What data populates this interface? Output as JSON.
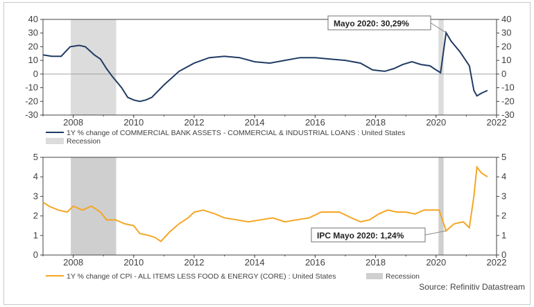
{
  "source": "Source: Refinitiv Datastream",
  "colors": {
    "bank": "#1f3b63",
    "cpi": "#f5a623",
    "recession_top": "#dcdcdc",
    "recession_bottom": "#cfcfcf",
    "zero_line": "#a0a0a0"
  },
  "chart_data": [
    {
      "type": "line",
      "title": "",
      "xlabel": "",
      "ylabel": "",
      "xlim": [
        2007.0,
        2022.0
      ],
      "ylim": [
        -30,
        40
      ],
      "x_ticks": [
        "2008",
        "2010",
        "2012",
        "2014",
        "2016",
        "2018",
        "2020",
        "2022"
      ],
      "y_ticks": [
        "40",
        "30",
        "20",
        "10",
        "0",
        "-10",
        "-20",
        "-30"
      ],
      "grid": false,
      "recessions": [
        [
          2007.92,
          2009.42
        ],
        [
          2020.08,
          2020.25
        ]
      ],
      "annotation": {
        "text": "Mayo 2020: 30,29%",
        "x": 2020.33,
        "y": 30.29
      },
      "legend": [
        {
          "label": "1Y % change of COMMERCIAL BANK ASSETS - COMMERCIAL & INDUSTRIAL LOANS : United States",
          "kind": "line"
        },
        {
          "label": "Recession",
          "kind": "box"
        }
      ],
      "series": [
        {
          "name": "1Y % change of COMMERCIAL BANK ASSETS - COMMERCIAL & INDUSTRIAL LOANS : United States",
          "x": [
            2007.0,
            2007.3,
            2007.6,
            2007.9,
            2008.2,
            2008.4,
            2008.5,
            2008.7,
            2008.9,
            2009.1,
            2009.3,
            2009.6,
            2009.8,
            2010.0,
            2010.2,
            2010.4,
            2010.6,
            2011.0,
            2011.5,
            2012.0,
            2012.5,
            2013.0,
            2013.5,
            2014.0,
            2014.5,
            2015.0,
            2015.5,
            2016.0,
            2016.5,
            2017.0,
            2017.5,
            2017.9,
            2018.3,
            2018.6,
            2018.9,
            2019.2,
            2019.5,
            2019.8,
            2020.0,
            2020.15,
            2020.33,
            2020.5,
            2020.8,
            2021.1,
            2021.25,
            2021.35,
            2021.5,
            2021.7
          ],
          "y": [
            14,
            13,
            13,
            20,
            21,
            20,
            18,
            14,
            11,
            4,
            -2,
            -10,
            -17,
            -19,
            -20,
            -19,
            -17,
            -8,
            2,
            8,
            12,
            13,
            12,
            9,
            8,
            10,
            12,
            12,
            11,
            10,
            8,
            3,
            2,
            4,
            7,
            9,
            7,
            6,
            3,
            1,
            30.29,
            24,
            16,
            6,
            -12,
            -16,
            -14,
            -12
          ]
        }
      ]
    },
    {
      "type": "line",
      "title": "",
      "xlabel": "",
      "ylabel": "",
      "xlim": [
        2007.0,
        2022.0
      ],
      "ylim": [
        0,
        5
      ],
      "x_ticks": [
        "2008",
        "2010",
        "2012",
        "2014",
        "2016",
        "2018",
        "2020",
        "2022"
      ],
      "y_ticks": [
        "5",
        "4",
        "3",
        "2",
        "1",
        "0"
      ],
      "grid": false,
      "recessions": [
        [
          2007.92,
          2009.42
        ],
        [
          2020.08,
          2020.25
        ]
      ],
      "annotation": {
        "text": "IPC Mayo 2020: 1,24%",
        "x": 2020.33,
        "y": 1.24
      },
      "legend": [
        {
          "label": "1Y % change of CPI - ALL ITEMS LESS FOOD & ENERGY (CORE) : United States",
          "kind": "line"
        },
        {
          "label": "Recession",
          "kind": "box"
        }
      ],
      "series": [
        {
          "name": "1Y % change of CPI - ALL ITEMS LESS FOOD & ENERGY (CORE) : United States",
          "x": [
            2007.0,
            2007.2,
            2007.5,
            2007.8,
            2008.0,
            2008.3,
            2008.6,
            2008.9,
            2009.1,
            2009.4,
            2009.7,
            2010.0,
            2010.2,
            2010.5,
            2010.7,
            2010.9,
            2011.2,
            2011.5,
            2011.8,
            2012.0,
            2012.3,
            2012.7,
            2013.0,
            2013.4,
            2013.8,
            2014.2,
            2014.6,
            2015.0,
            2015.4,
            2015.8,
            2016.2,
            2016.5,
            2016.8,
            2017.2,
            2017.5,
            2017.8,
            2018.1,
            2018.4,
            2018.7,
            2019.0,
            2019.3,
            2019.6,
            2019.9,
            2020.1,
            2020.33,
            2020.6,
            2020.9,
            2021.1,
            2021.25,
            2021.35,
            2021.5,
            2021.7
          ],
          "y": [
            2.7,
            2.5,
            2.3,
            2.2,
            2.5,
            2.3,
            2.5,
            2.2,
            1.8,
            1.8,
            1.6,
            1.5,
            1.1,
            1.0,
            0.9,
            0.7,
            1.2,
            1.6,
            1.9,
            2.2,
            2.3,
            2.1,
            1.9,
            1.8,
            1.7,
            1.8,
            1.9,
            1.7,
            1.8,
            1.9,
            2.2,
            2.2,
            2.2,
            1.9,
            1.7,
            1.8,
            2.1,
            2.3,
            2.2,
            2.2,
            2.1,
            2.3,
            2.3,
            2.3,
            1.24,
            1.6,
            1.7,
            1.4,
            3.0,
            4.5,
            4.2,
            4.0
          ]
        }
      ]
    }
  ]
}
